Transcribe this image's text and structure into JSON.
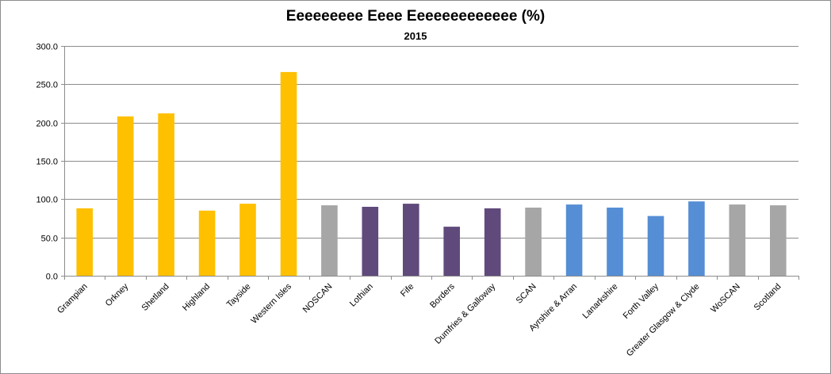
{
  "chart_data": {
    "type": "bar",
    "title": "Eeeeeeeee Eeee Eeeeeeeeeeeee (%)",
    "subtitle": "2015",
    "xlabel": "",
    "ylabel": "",
    "ylim": [
      0,
      300
    ],
    "yticks": [
      0,
      50,
      100,
      150,
      200,
      250,
      300
    ],
    "ytick_labels": [
      "0.0",
      "50.0",
      "100.0",
      "150.0",
      "200.0",
      "250.0",
      "300.0"
    ],
    "grid": true,
    "legend": "none",
    "categories": [
      "Grampian",
      "Orkney",
      "Shetland",
      "Highland",
      "Tayside",
      "Western Isles",
      "NOSCAN",
      "Lothian",
      "Fife",
      "Borders",
      "Dumfries & Galloway",
      "SCAN",
      "Ayrshire & Arran",
      "Lanarkshire",
      "Forth Valley",
      "Greater Glasgow & Clyde",
      "WoSCAN",
      "Scotland"
    ],
    "values": [
      88,
      208,
      212,
      85,
      94,
      266,
      92,
      90,
      94,
      64,
      88,
      89,
      93,
      89,
      78,
      97,
      93,
      92
    ],
    "bar_colors": [
      "#ffc000",
      "#ffc000",
      "#ffc000",
      "#ffc000",
      "#ffc000",
      "#ffc000",
      "#a6a6a6",
      "#604a7b",
      "#604a7b",
      "#604a7b",
      "#604a7b",
      "#a6a6a6",
      "#558ed5",
      "#558ed5",
      "#558ed5",
      "#558ed5",
      "#a6a6a6",
      "#a6a6a6"
    ]
  }
}
